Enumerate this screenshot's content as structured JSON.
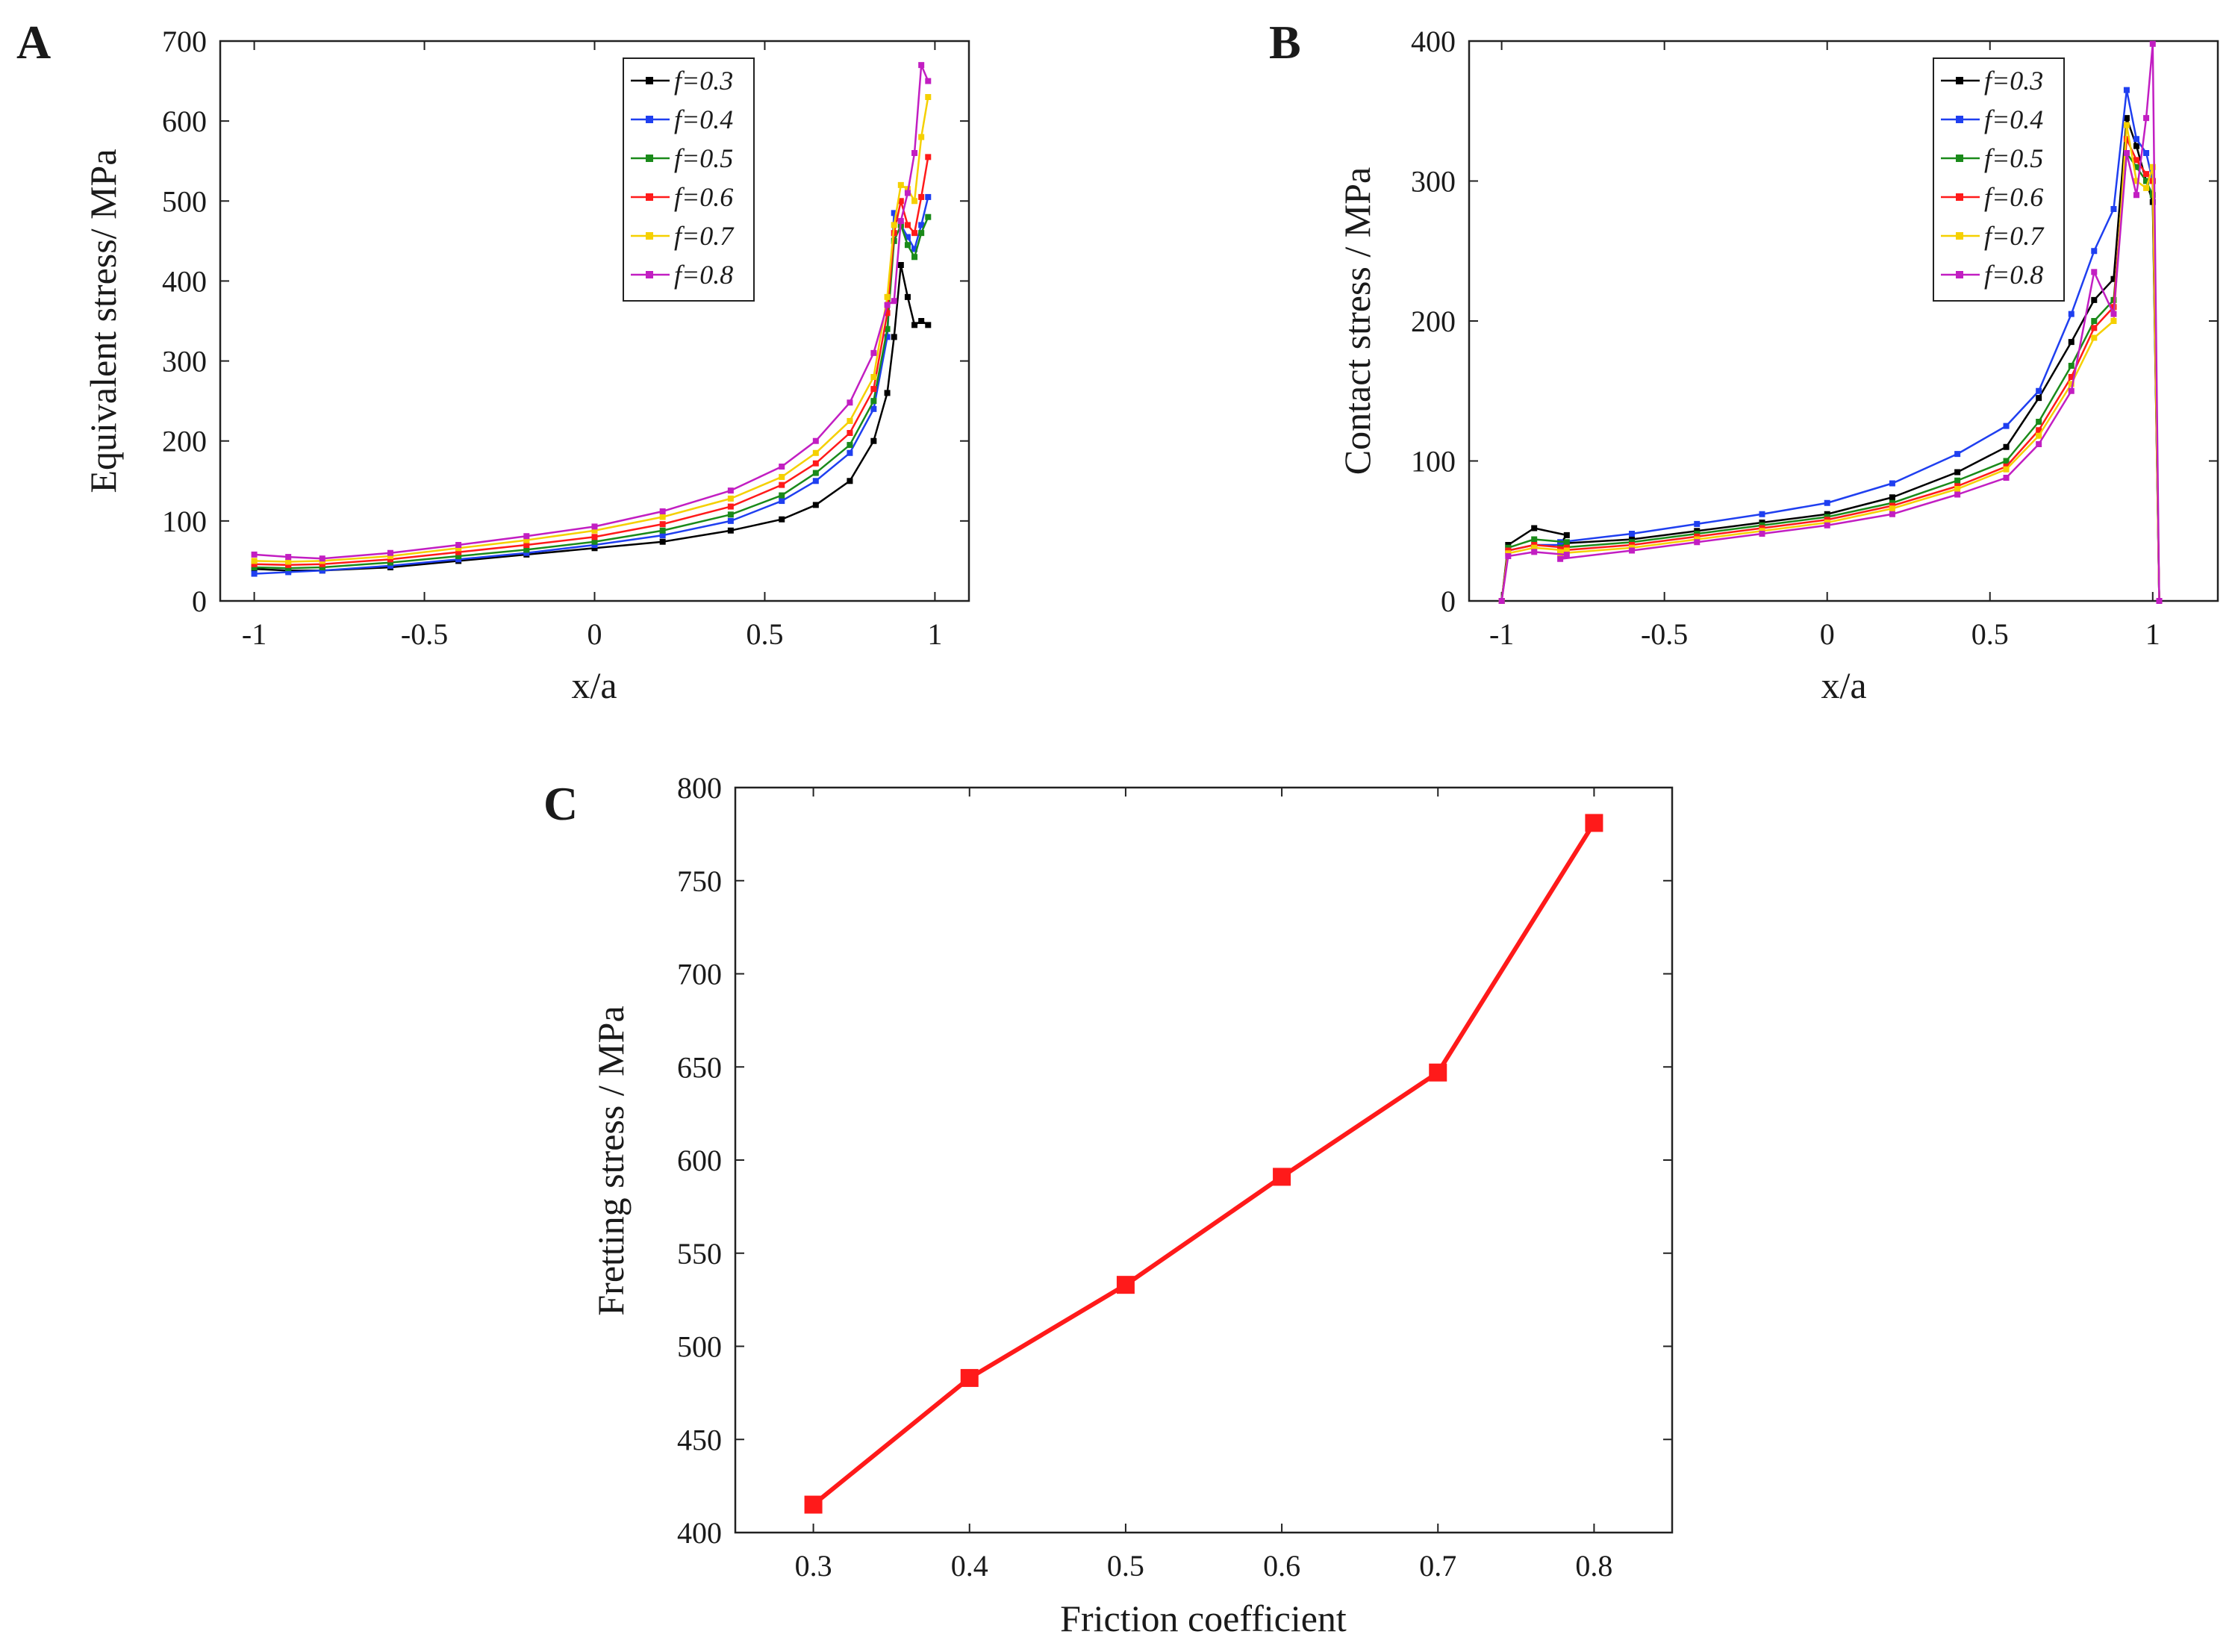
{
  "panels": {
    "A": {
      "letter": "A",
      "xlabel": "x/a",
      "ylabel": "Equivalent stress/ MPa"
    },
    "B": {
      "letter": "B",
      "xlabel": "x/a",
      "ylabel": "Contact stress / MPa"
    },
    "C": {
      "letter": "C",
      "xlabel": "Friction coefficient",
      "ylabel": "Fretting stress / MPa"
    }
  },
  "legend": [
    "f=0.3",
    "f=0.4",
    "f=0.5",
    "f=0.6",
    "f=0.7",
    "f=0.8"
  ],
  "colors": [
    "#000000",
    "#1f3ff0",
    "#1a8a1a",
    "#ff1a1a",
    "#f5d000",
    "#c21ec2"
  ],
  "chart_data": [
    {
      "id": "A",
      "type": "line",
      "title": "",
      "xlabel": "x/a",
      "ylabel": "Equivalent stress/ MPa",
      "xlim": [
        -1.1,
        1.1
      ],
      "ylim": [
        0,
        700
      ],
      "xticks": [
        -1,
        -0.5,
        0,
        0.5,
        1
      ],
      "xtick_labels": [
        "-1",
        "-0.5",
        "0",
        "0.5",
        "1"
      ],
      "yticks": [
        0,
        100,
        200,
        300,
        400,
        500,
        600,
        700
      ],
      "ytick_labels": [
        "0",
        "100",
        "200",
        "300",
        "400",
        "500",
        "600",
        "700"
      ],
      "legend_position": "top-right",
      "series": [
        {
          "name": "f=0.3",
          "x": [
            -1,
            -0.9,
            -0.8,
            -0.6,
            -0.4,
            -0.2,
            0,
            0.2,
            0.4,
            0.55,
            0.65,
            0.75,
            0.82,
            0.86,
            0.88,
            0.9,
            0.92,
            0.94,
            0.96,
            0.98
          ],
          "y": [
            40,
            38,
            38,
            42,
            50,
            58,
            66,
            74,
            88,
            102,
            120,
            150,
            200,
            260,
            330,
            420,
            380,
            345,
            350,
            345
          ]
        },
        {
          "name": "f=0.4",
          "x": [
            -1,
            -0.9,
            -0.8,
            -0.6,
            -0.4,
            -0.2,
            0,
            0.2,
            0.4,
            0.55,
            0.65,
            0.75,
            0.82,
            0.86,
            0.88,
            0.9,
            0.92,
            0.94,
            0.96,
            0.98
          ],
          "y": [
            34,
            36,
            38,
            44,
            52,
            60,
            70,
            82,
            100,
            125,
            150,
            185,
            240,
            330,
            485,
            470,
            455,
            440,
            470,
            505
          ]
        },
        {
          "name": "f=0.5",
          "x": [
            -1,
            -0.9,
            -0.8,
            -0.6,
            -0.4,
            -0.2,
            0,
            0.2,
            0.4,
            0.55,
            0.65,
            0.75,
            0.82,
            0.86,
            0.88,
            0.9,
            0.92,
            0.94,
            0.96,
            0.98
          ],
          "y": [
            42,
            41,
            42,
            48,
            56,
            64,
            74,
            88,
            108,
            132,
            160,
            195,
            250,
            340,
            450,
            470,
            445,
            430,
            460,
            480
          ]
        },
        {
          "name": "f=0.6",
          "x": [
            -1,
            -0.9,
            -0.8,
            -0.6,
            -0.4,
            -0.2,
            0,
            0.2,
            0.4,
            0.55,
            0.65,
            0.75,
            0.82,
            0.86,
            0.88,
            0.9,
            0.92,
            0.94,
            0.96,
            0.98
          ],
          "y": [
            46,
            45,
            46,
            52,
            61,
            70,
            80,
            96,
            118,
            145,
            172,
            210,
            265,
            360,
            460,
            500,
            470,
            460,
            505,
            555
          ]
        },
        {
          "name": "f=0.7",
          "x": [
            -1,
            -0.9,
            -0.8,
            -0.6,
            -0.4,
            -0.2,
            0,
            0.2,
            0.4,
            0.55,
            0.65,
            0.75,
            0.82,
            0.86,
            0.88,
            0.9,
            0.92,
            0.94,
            0.96,
            0.98
          ],
          "y": [
            50,
            49,
            50,
            56,
            66,
            76,
            88,
            105,
            128,
            155,
            185,
            225,
            280,
            380,
            470,
            520,
            515,
            500,
            580,
            630
          ]
        },
        {
          "name": "f=0.8",
          "x": [
            -1,
            -0.9,
            -0.8,
            -0.6,
            -0.4,
            -0.2,
            0,
            0.2,
            0.4,
            0.55,
            0.65,
            0.75,
            0.82,
            0.86,
            0.88,
            0.9,
            0.92,
            0.94,
            0.96,
            0.98
          ],
          "y": [
            58,
            55,
            53,
            60,
            70,
            81,
            93,
            112,
            138,
            168,
            200,
            248,
            310,
            370,
            375,
            475,
            510,
            560,
            670,
            650
          ]
        }
      ]
    },
    {
      "id": "B",
      "type": "line",
      "title": "",
      "xlabel": "x/a",
      "ylabel": "Contact stress / MPa",
      "xlim": [
        -1.1,
        1.2
      ],
      "ylim": [
        0,
        400
      ],
      "xticks": [
        -1,
        -0.5,
        0,
        0.5,
        1
      ],
      "xtick_labels": [
        "-1",
        "-0.5",
        "0",
        "0.5",
        "1"
      ],
      "yticks": [
        0,
        100,
        200,
        300,
        400
      ],
      "ytick_labels": [
        "0",
        "100",
        "200",
        "300",
        "400"
      ],
      "legend_position": "top-right",
      "series": [
        {
          "name": "f=0.3",
          "x": [
            -1,
            -0.98,
            -0.9,
            -0.8,
            -0.82,
            -0.6,
            -0.4,
            -0.2,
            0,
            0.2,
            0.4,
            0.55,
            0.65,
            0.75,
            0.82,
            0.88,
            0.92,
            0.95,
            0.98,
            1.0,
            1.02
          ],
          "y": [
            0,
            40,
            52,
            47,
            41,
            44,
            50,
            56,
            62,
            74,
            92,
            110,
            145,
            185,
            215,
            230,
            345,
            325,
            300,
            285,
            0
          ]
        },
        {
          "name": "f=0.4",
          "x": [
            -1,
            -0.98,
            -0.9,
            -0.8,
            -0.82,
            -0.6,
            -0.4,
            -0.2,
            0,
            0.2,
            0.4,
            0.55,
            0.65,
            0.75,
            0.82,
            0.88,
            0.92,
            0.95,
            0.98,
            1.0,
            1.02
          ],
          "y": [
            0,
            36,
            40,
            40,
            42,
            48,
            55,
            62,
            70,
            84,
            105,
            125,
            150,
            205,
            250,
            280,
            365,
            330,
            320,
            300,
            0
          ]
        },
        {
          "name": "f=0.5",
          "x": [
            -1,
            -0.98,
            -0.9,
            -0.8,
            -0.82,
            -0.6,
            -0.4,
            -0.2,
            0,
            0.2,
            0.4,
            0.55,
            0.65,
            0.75,
            0.82,
            0.88,
            0.92,
            0.95,
            0.98,
            1.0,
            1.02
          ],
          "y": [
            0,
            38,
            44,
            42,
            38,
            42,
            48,
            54,
            60,
            70,
            86,
            100,
            128,
            168,
            200,
            215,
            320,
            310,
            300,
            290,
            0
          ]
        },
        {
          "name": "f=0.6",
          "x": [
            -1,
            -0.98,
            -0.9,
            -0.8,
            -0.82,
            -0.6,
            -0.4,
            -0.2,
            0,
            0.2,
            0.4,
            0.55,
            0.65,
            0.75,
            0.82,
            0.88,
            0.92,
            0.95,
            0.98,
            1.0,
            1.02
          ],
          "y": [
            0,
            36,
            40,
            38,
            36,
            40,
            46,
            52,
            58,
            68,
            82,
            96,
            122,
            160,
            195,
            210,
            330,
            315,
            305,
            300,
            0
          ]
        },
        {
          "name": "f=0.7",
          "x": [
            -1,
            -0.98,
            -0.9,
            -0.8,
            -0.82,
            -0.6,
            -0.4,
            -0.2,
            0,
            0.2,
            0.4,
            0.55,
            0.65,
            0.75,
            0.82,
            0.88,
            0.92,
            0.95,
            0.98,
            1.0,
            1.02
          ],
          "y": [
            0,
            34,
            38,
            36,
            34,
            38,
            44,
            50,
            56,
            66,
            80,
            94,
            118,
            155,
            188,
            200,
            340,
            300,
            295,
            310,
            0
          ]
        },
        {
          "name": "f=0.8",
          "x": [
            -1,
            -0.98,
            -0.9,
            -0.8,
            -0.82,
            -0.6,
            -0.4,
            -0.2,
            0,
            0.2,
            0.4,
            0.55,
            0.65,
            0.75,
            0.82,
            0.88,
            0.92,
            0.95,
            0.98,
            1.0,
            1.02
          ],
          "y": [
            0,
            32,
            35,
            33,
            30,
            36,
            42,
            48,
            54,
            62,
            76,
            88,
            112,
            150,
            235,
            205,
            320,
            290,
            345,
            398,
            0
          ]
        }
      ]
    },
    {
      "id": "C",
      "type": "line",
      "title": "",
      "xlabel": "Friction coefficient",
      "ylabel": "Fretting stress / MPa",
      "xlim": [
        0.25,
        0.85
      ],
      "ylim": [
        400,
        800
      ],
      "xticks": [
        0.3,
        0.4,
        0.5,
        0.6,
        0.7,
        0.8
      ],
      "xtick_labels": [
        "0.3",
        "0.4",
        "0.5",
        "0.6",
        "0.7",
        "0.8"
      ],
      "yticks": [
        400,
        450,
        500,
        550,
        600,
        650,
        700,
        750,
        800
      ],
      "ytick_labels": [
        "400",
        "450",
        "500",
        "550",
        "600",
        "650",
        "700",
        "750",
        "800"
      ],
      "series": [
        {
          "name": "Fretting stress",
          "color": "#ff1a1a",
          "x": [
            0.3,
            0.4,
            0.5,
            0.6,
            0.7,
            0.8
          ],
          "y": [
            415,
            483,
            533,
            591,
            647,
            781
          ]
        }
      ]
    }
  ]
}
